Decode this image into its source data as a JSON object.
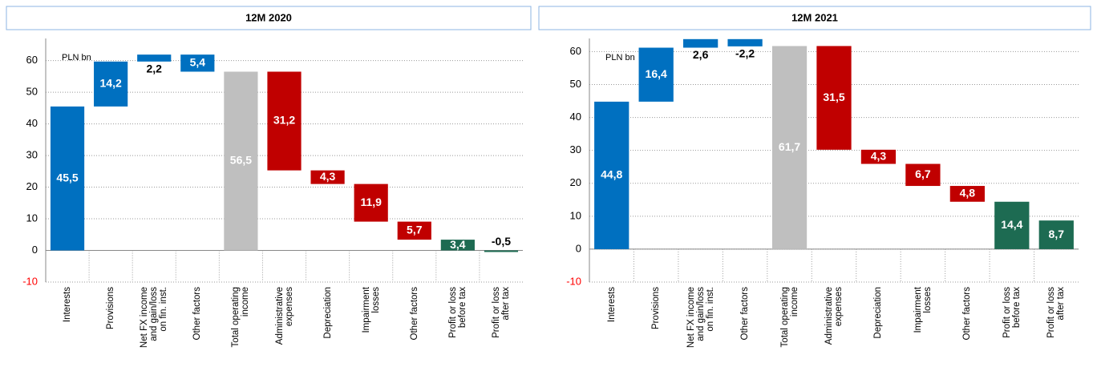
{
  "chart_data": [
    {
      "type": "waterfall",
      "title": "12M 2020",
      "unit": "PLN bn",
      "categories": [
        "Interests",
        "Provisions",
        "Net FX income\nand gain/loss\non fin. inst.",
        "Other factors",
        "Total operating\nincome",
        "Administrative\nexpenses",
        "Depreciation",
        "Impairment\nlosses",
        "Other factors",
        "Profit or loss\nbefore tax",
        "Profit or loss\nafter tax"
      ],
      "values": [
        45.5,
        14.2,
        2.2,
        -5.4,
        56.5,
        -31.2,
        -4.3,
        -11.9,
        -5.7,
        3.4,
        -0.5
      ],
      "value_labels": [
        "45,5",
        "14,2",
        "2,2",
        "5,4",
        "56,5",
        "31,2",
        "4,3",
        "11,9",
        "5,7",
        "3,4",
        "-0,5"
      ],
      "measures": [
        "relative",
        "relative",
        "relative",
        "relative",
        "total",
        "relative",
        "relative",
        "relative",
        "relative",
        "total",
        "total"
      ],
      "colors": [
        "#0070C0",
        "#0070C0",
        "#0070C0",
        "#0070C0",
        "#BFBFBF",
        "#C00000",
        "#C00000",
        "#C00000",
        "#C00000",
        "#1D6B52",
        "#1D6B52"
      ],
      "ylim": [
        -10,
        67
      ],
      "yticks": [
        -10,
        0,
        10,
        20,
        30,
        40,
        50,
        60
      ],
      "grid": true
    },
    {
      "type": "waterfall",
      "title": "12M 2021",
      "unit": "PLN bn",
      "categories": [
        "Interests",
        "Provisions",
        "Net FX income\nand gain/loss\non fin. inst.",
        "Other factors",
        "Total operating\nincome",
        "Administrative\nexpenses",
        "Depreciation",
        "Impairment\nlosses",
        "Other factors",
        "Profit or loss\nbefore tax",
        "Profit or loss\nafter tax"
      ],
      "values": [
        44.8,
        16.4,
        2.6,
        -2.2,
        61.7,
        -31.5,
        -4.3,
        -6.7,
        -4.8,
        14.4,
        8.7
      ],
      "value_labels": [
        "44,8",
        "16,4",
        "2,6",
        "-2,2",
        "61,7",
        "31,5",
        "4,3",
        "6,7",
        "4,8",
        "14,4",
        "8,7"
      ],
      "measures": [
        "relative",
        "relative",
        "relative",
        "relative",
        "total",
        "relative",
        "relative",
        "relative",
        "relative",
        "total",
        "total"
      ],
      "colors": [
        "#0070C0",
        "#0070C0",
        "#0070C0",
        "#0070C0",
        "#BFBFBF",
        "#C00000",
        "#C00000",
        "#C00000",
        "#C00000",
        "#1D6B52",
        "#1D6B52"
      ],
      "ylim": [
        -10,
        64
      ],
      "yticks": [
        -10,
        0,
        10,
        20,
        30,
        40,
        50,
        60
      ],
      "grid": true
    }
  ]
}
